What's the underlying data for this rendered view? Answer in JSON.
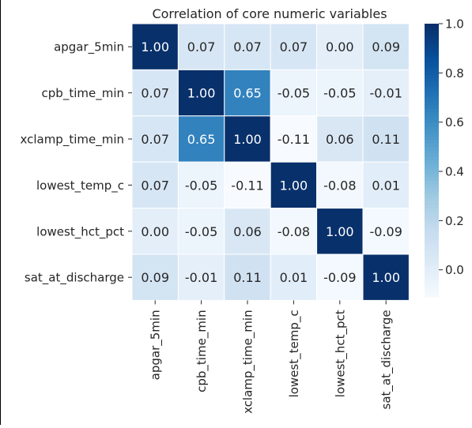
{
  "chart_data": {
    "type": "heatmap",
    "title": "Correlation of core numeric variables",
    "xlabel": "",
    "ylabel": "",
    "variables": [
      "apgar_5min",
      "cpb_time_min",
      "xclamp_time_min",
      "lowest_temp_c",
      "lowest_hct_pct",
      "sat_at_discharge"
    ],
    "values": [
      [
        1.0,
        0.07,
        0.07,
        0.07,
        0.0,
        0.09
      ],
      [
        0.07,
        1.0,
        0.65,
        -0.05,
        -0.05,
        -0.01
      ],
      [
        0.07,
        0.65,
        1.0,
        -0.11,
        0.06,
        0.11
      ],
      [
        0.07,
        -0.05,
        -0.11,
        1.0,
        -0.08,
        0.01
      ],
      [
        0.0,
        -0.05,
        0.06,
        -0.08,
        1.0,
        -0.09
      ],
      [
        0.09,
        -0.01,
        0.11,
        0.01,
        -0.09,
        1.0
      ]
    ],
    "value_labels": [
      [
        "1.00",
        "0.07",
        "0.07",
        "0.07",
        "0.00",
        "0.09"
      ],
      [
        "0.07",
        "1.00",
        "0.65",
        "-0.05",
        "-0.05",
        "-0.01"
      ],
      [
        "0.07",
        "0.65",
        "1.00",
        "-0.11",
        "0.06",
        "0.11"
      ],
      [
        "0.07",
        "-0.05",
        "-0.11",
        "1.00",
        "-0.08",
        "0.01"
      ],
      [
        "0.00",
        "-0.05",
        "0.06",
        "-0.08",
        "1.00",
        "-0.09"
      ],
      [
        "0.09",
        "-0.01",
        "0.11",
        "0.01",
        "-0.09",
        "1.00"
      ]
    ],
    "colorbar": {
      "min": -0.11,
      "max": 1.0,
      "ticks": [
        "0.0",
        "0.2",
        "0.4",
        "0.6",
        "0.8",
        "1.0"
      ],
      "colormap": "Blues"
    },
    "grid": true,
    "cell_border_color": "#ffffff"
  }
}
